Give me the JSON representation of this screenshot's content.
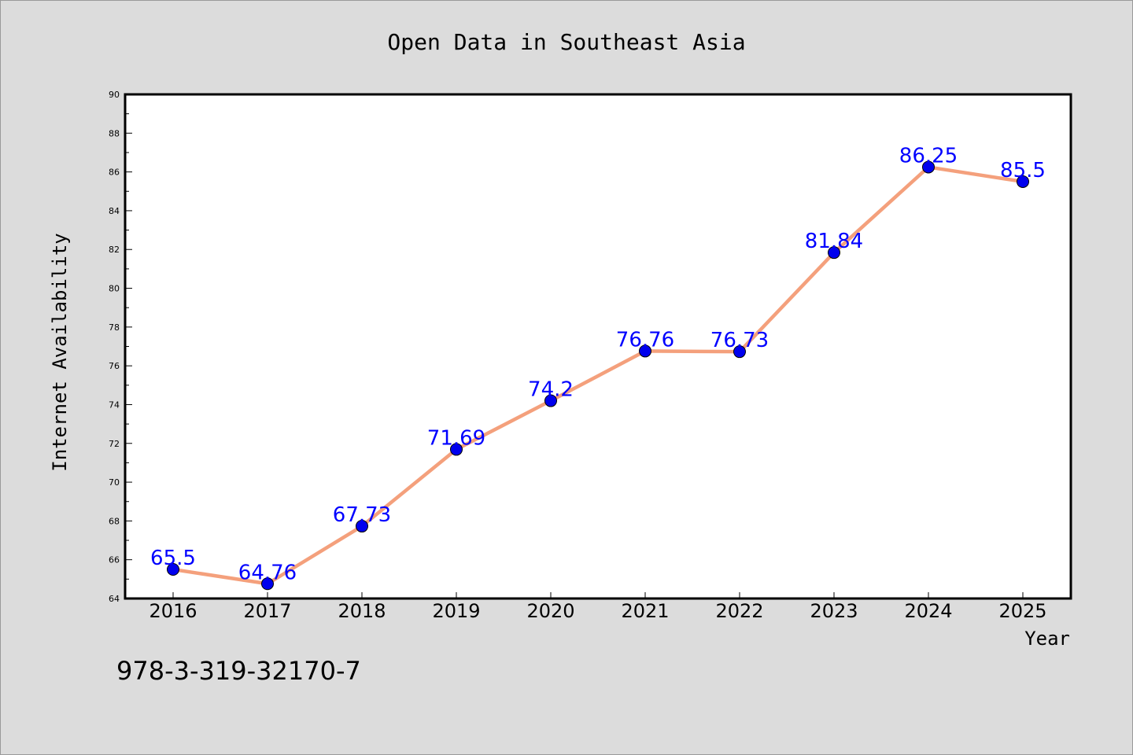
{
  "chart_data": {
    "type": "line",
    "title": "Open Data in Southeast Asia",
    "xlabel": "Year",
    "ylabel": "Internet Availability",
    "categories": [
      "2016",
      "2017",
      "2018",
      "2019",
      "2020",
      "2021",
      "2022",
      "2023",
      "2024",
      "2025"
    ],
    "series": [
      {
        "values": [
          65.5,
          64.76,
          67.73,
          71.69,
          74.2,
          76.76,
          76.73,
          81.84,
          86.25,
          85.5
        ],
        "data_labels": [
          "65.5",
          "64.76",
          "67.73",
          "71.69",
          "74.2",
          "76.76",
          "76.73",
          "81.84",
          "86.25",
          "85.5"
        ]
      }
    ],
    "ylim": [
      64,
      90
    ],
    "yticks": [
      "64",
      "66",
      "68",
      "70",
      "72",
      "74",
      "76",
      "78",
      "80",
      "82",
      "84",
      "86",
      "88",
      "90"
    ],
    "grid": false,
    "legend": "none",
    "colors": {
      "line": "#f4a07c",
      "marker": "#0000ee",
      "data_label": "#0000ff",
      "background": "#dcdcdc",
      "plot_background": "#ffffff"
    }
  },
  "footnote": "978-3-319-32170-7"
}
